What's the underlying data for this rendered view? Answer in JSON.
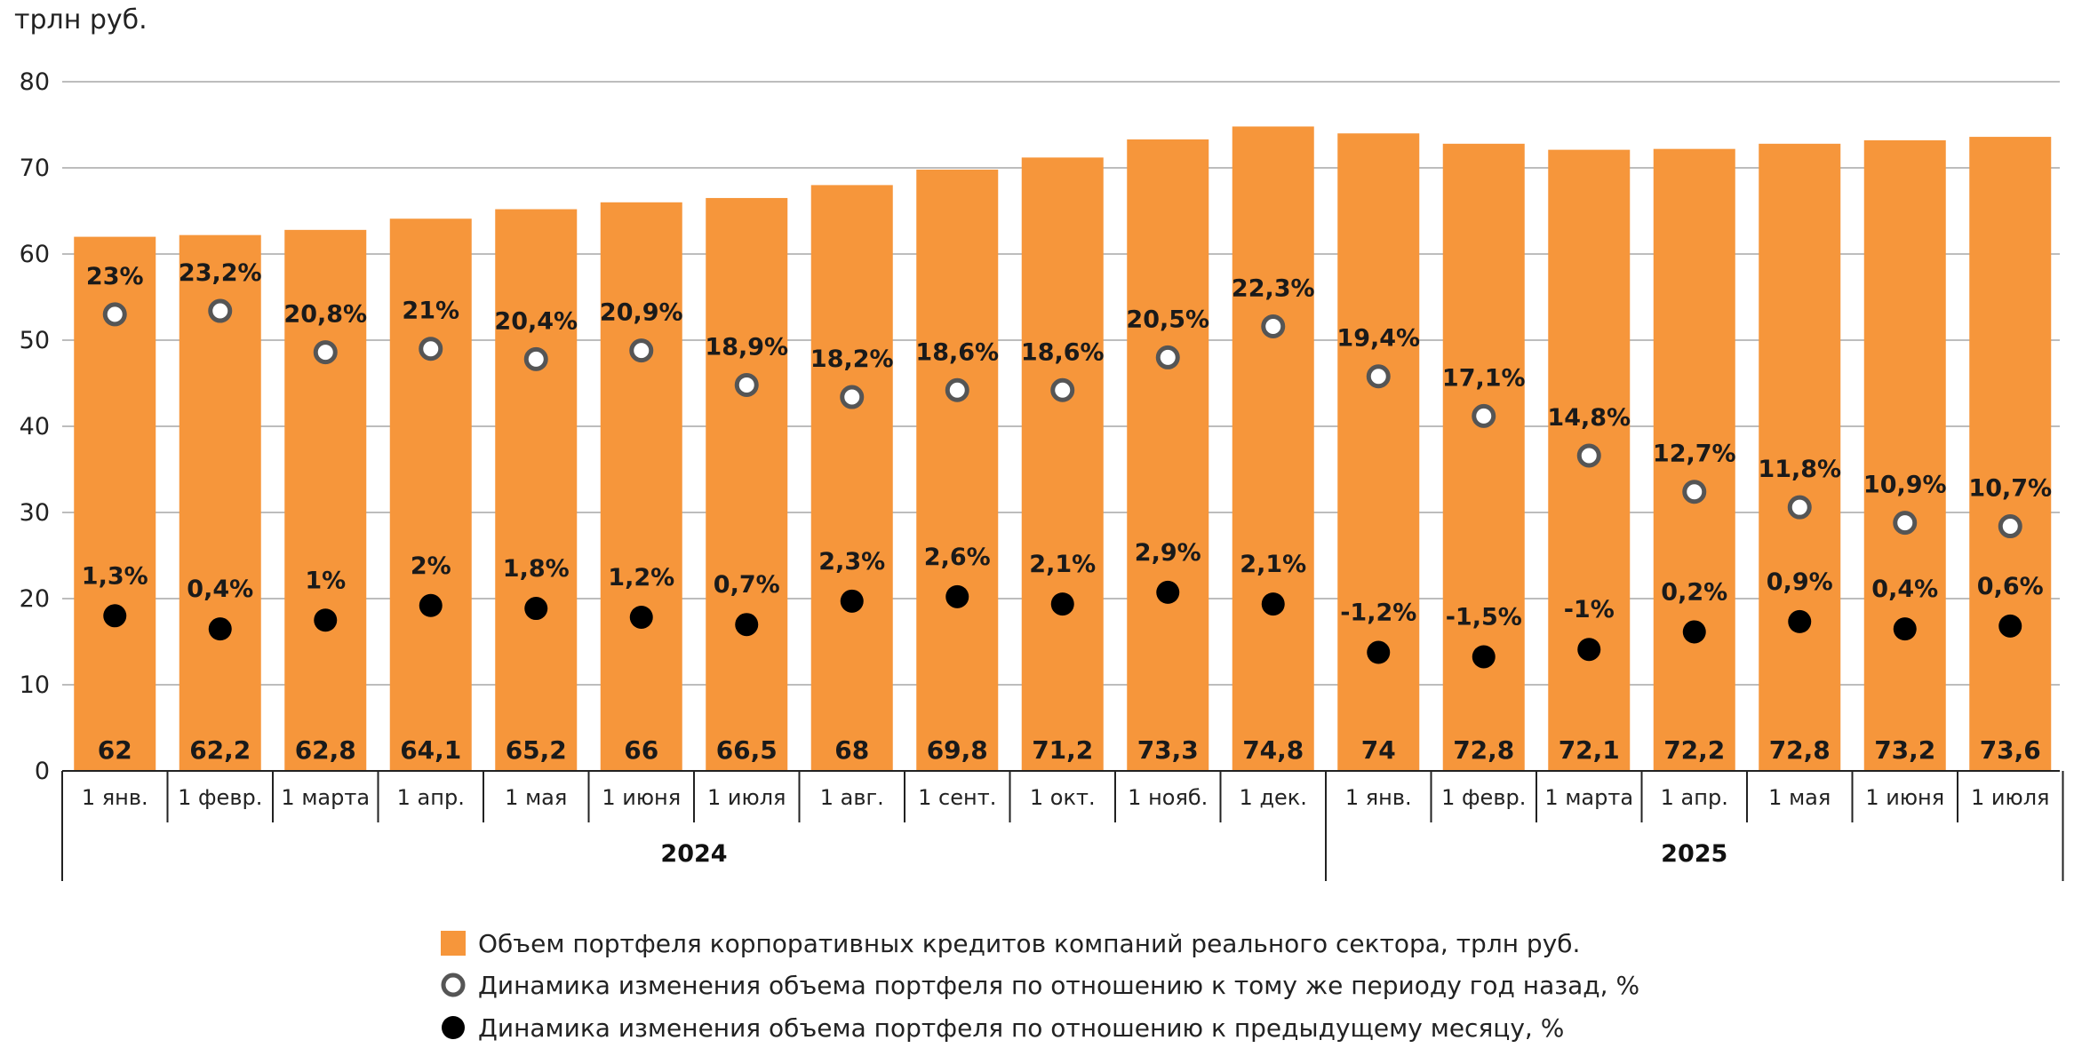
{
  "chart_data": {
    "type": "bar",
    "unit_label": "трлн руб.",
    "ylim": [
      0,
      80
    ],
    "yticks": [
      0,
      10,
      20,
      30,
      40,
      50,
      60,
      70,
      80
    ],
    "categories": [
      "1 янв.",
      "1 февр.",
      "1 марта",
      "1 апр.",
      "1 мая",
      "1 июня",
      "1 июля",
      "1 авг.",
      "1 сент.",
      "1 окт.",
      "1 нояб.",
      "1 дек.",
      "1 янв.",
      "1 февр.",
      "1 марта",
      "1 апр.",
      "1 мая",
      "1 июня",
      "1 июля"
    ],
    "years": [
      {
        "label": "2024",
        "count": 12
      },
      {
        "label": "2025",
        "count": 7
      }
    ],
    "bar_labels": [
      "62",
      "62,2",
      "62,8",
      "64,1",
      "65,2",
      "66",
      "66,5",
      "68",
      "69,8",
      "71,2",
      "73,3",
      "74,8",
      "74",
      "72,8",
      "72,1",
      "72,2",
      "72,8",
      "73,2",
      "73,6"
    ],
    "series": [
      {
        "name": "Объем портфеля корпоративных кредитов компаний реального сектора, трлн руб.",
        "kind": "bar",
        "color": "#f6963b",
        "values": [
          62,
          62.2,
          62.8,
          64.1,
          65.2,
          66,
          66.5,
          68,
          69.8,
          71.2,
          73.3,
          74.8,
          74,
          72.8,
          72.1,
          72.2,
          72.8,
          73.2,
          73.6
        ]
      },
      {
        "name": "Динамика изменения объема портфеля по отношению к тому же периоду год назад, %",
        "kind": "marker-hollow",
        "values": [
          23,
          23.2,
          20.8,
          21,
          20.4,
          20.9,
          18.9,
          18.2,
          18.6,
          18.6,
          20.5,
          22.3,
          19.4,
          17.1,
          14.8,
          12.7,
          11.8,
          10.9,
          10.7
        ],
        "labels": [
          "23%",
          "23,2%",
          "20,8%",
          "21%",
          "20,4%",
          "20,9%",
          "18,9%",
          "18,2%",
          "18,6%",
          "18,6%",
          "20,5%",
          "22,3%",
          "19,4%",
          "17,1%",
          "14,8%",
          "12,7%",
          "11,8%",
          "10,9%",
          "10,7%"
        ]
      },
      {
        "name": "Динамика изменения объема портфеля по отношению к предыдущему месяцу, %",
        "kind": "marker-solid",
        "values": [
          1.3,
          0.4,
          1,
          2,
          1.8,
          1.2,
          0.7,
          2.3,
          2.6,
          2.1,
          2.9,
          2.1,
          -1.2,
          -1.5,
          -1,
          0.2,
          0.9,
          0.4,
          0.6
        ],
        "labels": [
          "1,3%",
          "0,4%",
          "1%",
          "2%",
          "1,8%",
          "1,2%",
          "0,7%",
          "2,3%",
          "2,6%",
          "2,1%",
          "2,9%",
          "2,1%",
          "-1,2%",
          "-1,5%",
          "-1%",
          "0,2%",
          "0,9%",
          "0,4%",
          "0,6%"
        ]
      }
    ]
  }
}
